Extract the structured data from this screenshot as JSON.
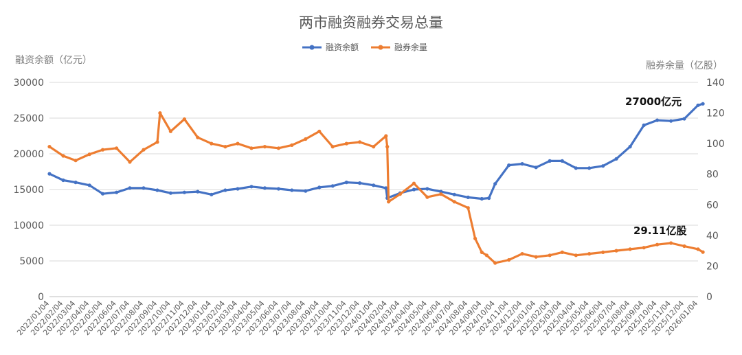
{
  "chart_data": {
    "type": "line",
    "title": "两市融资融券交易总量",
    "left_axis_label": "融资余额（亿元）",
    "right_axis_label": "融券余量（亿股）",
    "left_ylim": [
      0,
      30000
    ],
    "left_ticks": [
      "0",
      "5000",
      "10000",
      "15000",
      "20000",
      "25000",
      "30000"
    ],
    "right_ylim": [
      0,
      140
    ],
    "right_ticks": [
      "0",
      "20",
      "40",
      "60",
      "80",
      "100",
      "120",
      "140"
    ],
    "x_ticks": [
      "2022/01/04",
      "2022/02/04",
      "2022/03/04",
      "2022/04/04",
      "2022/05/04",
      "2022/06/04",
      "2022/07/04",
      "2022/08/04",
      "2022/09/04",
      "2022/10/04",
      "2022/11/04",
      "2022/12/04",
      "2023/01/04",
      "2023/02/04",
      "2023/03/04",
      "2023/04/04",
      "2023/05/04",
      "2023/06/04",
      "2023/07/04",
      "2023/08/04",
      "2023/09/04",
      "2023/10/04",
      "2023/11/04",
      "2023/12/04",
      "2024/01/04",
      "2024/02/04",
      "2024/03/04",
      "2024/04/04",
      "2024/05/04",
      "2024/06/04",
      "2024/07/04",
      "2024/08/04",
      "2024/09/04",
      "2024/10/04",
      "2024/11/04",
      "2024/12/04",
      "2025/01/04",
      "2025/02/04",
      "2025/03/04",
      "2025/04/04",
      "2025/05/04",
      "2025/06/04",
      "2025/07/04",
      "2025/08/04",
      "2025/09/04",
      "2025/10/04",
      "2025/11/04",
      "2025/12/04",
      "2026/01/04"
    ],
    "legend_position": "top",
    "grid": "horizontal",
    "series": [
      {
        "name": "融资余额",
        "axis": "left",
        "color": "#4472c4",
        "x": [
          "2022/01/04",
          "2022/02/04",
          "2022/03/04",
          "2022/04/04",
          "2022/05/04",
          "2022/06/04",
          "2022/07/04",
          "2022/08/04",
          "2022/09/04",
          "2022/10/04",
          "2022/11/04",
          "2022/12/04",
          "2023/01/04",
          "2023/02/04",
          "2023/03/04",
          "2023/04/04",
          "2023/05/04",
          "2023/06/04",
          "2023/07/04",
          "2023/08/04",
          "2023/09/04",
          "2023/10/04",
          "2023/11/04",
          "2023/12/04",
          "2024/01/04",
          "2024/02/01",
          "2024/02/04",
          "2024/03/04",
          "2024/04/04",
          "2024/05/04",
          "2024/06/04",
          "2024/07/04",
          "2024/08/04",
          "2024/09/04",
          "2024/09/20",
          "2024/10/04",
          "2024/11/04",
          "2024/12/04",
          "2025/01/04",
          "2025/02/04",
          "2025/03/04",
          "2025/04/04",
          "2025/05/04",
          "2025/06/04",
          "2025/07/04",
          "2025/08/04",
          "2025/09/04",
          "2025/10/04",
          "2025/11/04",
          "2025/12/04",
          "2026/01/04",
          "2026/01/15"
        ],
        "values": [
          17200,
          16300,
          16000,
          15600,
          14400,
          14600,
          15200,
          15200,
          14900,
          14500,
          14600,
          14700,
          14300,
          14900,
          15100,
          15400,
          15200,
          15100,
          14900,
          14800,
          15300,
          15500,
          16000,
          15900,
          15600,
          15200,
          13800,
          14500,
          15000,
          15100,
          14700,
          14300,
          13900,
          13700,
          13800,
          15800,
          18400,
          18600,
          18100,
          19000,
          19000,
          18000,
          18000,
          18300,
          19300,
          21000,
          24000,
          24700,
          24600,
          24900,
          26800,
          27000
        ]
      },
      {
        "name": "融券余量",
        "axis": "right",
        "color": "#ed7d31",
        "x": [
          "2022/01/04",
          "2022/02/04",
          "2022/03/04",
          "2022/04/04",
          "2022/05/04",
          "2022/06/04",
          "2022/07/04",
          "2022/08/04",
          "2022/09/04",
          "2022/09/10",
          "2022/10/04",
          "2022/11/04",
          "2022/12/04",
          "2023/01/04",
          "2023/02/04",
          "2023/03/04",
          "2023/04/04",
          "2023/05/04",
          "2023/06/04",
          "2023/07/04",
          "2023/08/04",
          "2023/09/04",
          "2023/10/04",
          "2023/11/04",
          "2023/12/04",
          "2024/01/04",
          "2024/02/01",
          "2024/02/04",
          "2024/02/07",
          "2024/03/04",
          "2024/04/04",
          "2024/05/04",
          "2024/06/04",
          "2024/07/04",
          "2024/08/04",
          "2024/08/20",
          "2024/09/04",
          "2024/09/15",
          "2024/10/04",
          "2024/11/04",
          "2024/12/04",
          "2025/01/04",
          "2025/02/04",
          "2025/03/04",
          "2025/04/04",
          "2025/05/04",
          "2025/06/04",
          "2025/07/04",
          "2025/08/04",
          "2025/09/04",
          "2025/10/04",
          "2025/11/04",
          "2025/12/04",
          "2026/01/04",
          "2026/01/15"
        ],
        "values": [
          98,
          92,
          89,
          93,
          96,
          97,
          88,
          96,
          101,
          120,
          108,
          116,
          104,
          100,
          98,
          100,
          97,
          98,
          97,
          99,
          103,
          108,
          98,
          100,
          101,
          98,
          105,
          98,
          62,
          67,
          74,
          65,
          67,
          62,
          58,
          38,
          29,
          27,
          22,
          24,
          28,
          26,
          27,
          29,
          27,
          28,
          29,
          30,
          31,
          32,
          34,
          35,
          33,
          31,
          29.11
        ]
      }
    ],
    "annotations": [
      "27000亿元",
      "29.11亿股"
    ]
  }
}
